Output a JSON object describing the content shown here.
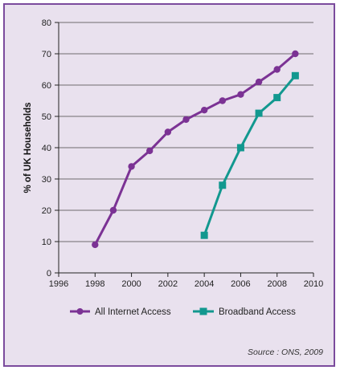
{
  "chart_data": {
    "type": "line",
    "ylabel": "% of UK Households",
    "xlim": [
      1996,
      2010
    ],
    "ylim": [
      0,
      80
    ],
    "x_ticks": [
      "1996",
      "1998",
      "2000",
      "2002",
      "2004",
      "2006",
      "2008",
      "2010"
    ],
    "y_ticks": [
      "0",
      "10",
      "20",
      "30",
      "40",
      "50",
      "60",
      "70",
      "80"
    ],
    "grid": "horizontal",
    "legend_position": "bottom",
    "series": [
      {
        "name": "All Internet Access",
        "color": "#7b3294",
        "marker": "circle",
        "x": [
          1998,
          1999,
          2000,
          2001,
          2002,
          2003,
          2004,
          2005,
          2006,
          2007,
          2008,
          2009
        ],
        "y": [
          9,
          20,
          34,
          39,
          45,
          49,
          52,
          55,
          57,
          61,
          65,
          70
        ]
      },
      {
        "name": "Broadband Access",
        "color": "#12988f",
        "marker": "square",
        "x": [
          2004,
          2005,
          2006,
          2007,
          2008,
          2009
        ],
        "y": [
          12,
          28,
          40,
          51,
          56,
          63
        ]
      }
    ],
    "source": "Source : ONS, 2009"
  }
}
